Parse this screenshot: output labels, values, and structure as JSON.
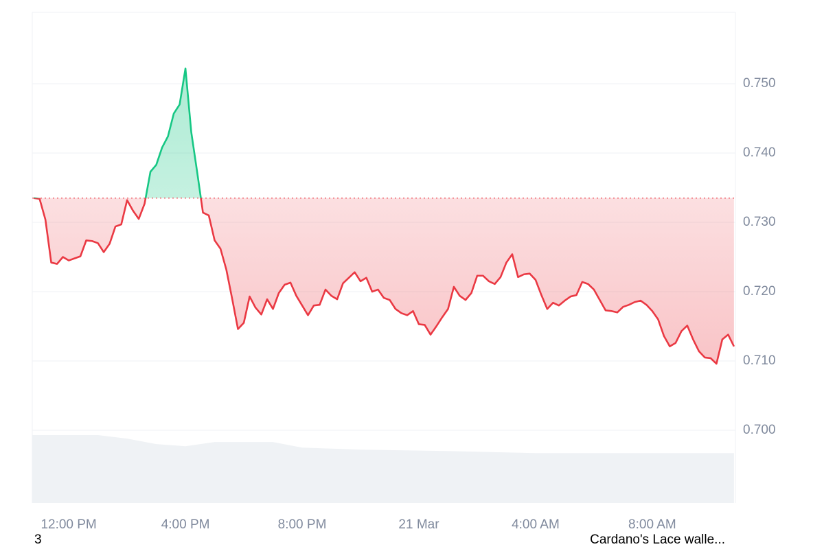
{
  "chart_data": {
    "type": "line",
    "x": [
      -1.2,
      -1.0,
      -0.8,
      -0.6,
      -0.4,
      -0.2,
      0.0,
      0.2,
      0.4,
      0.6,
      0.8,
      1.0,
      1.2,
      1.4,
      1.6,
      1.8,
      2.0,
      2.2,
      2.4,
      2.6,
      2.8,
      3.0,
      3.2,
      3.4,
      3.6,
      3.8,
      4.0,
      4.2,
      4.4,
      4.6,
      4.8,
      5.0,
      5.2,
      5.4,
      5.6,
      5.8,
      6.0,
      6.2,
      6.4,
      6.6,
      6.8,
      7.0,
      7.2,
      7.4,
      7.6,
      7.8,
      8.0,
      8.2,
      8.4,
      8.6,
      8.8,
      9.0,
      9.2,
      9.4,
      9.6,
      9.8,
      10.0,
      10.2,
      10.4,
      10.6,
      10.8,
      11.0,
      11.2,
      11.4,
      11.6,
      11.8,
      12.0,
      12.2,
      12.4,
      12.6,
      12.8,
      13.0,
      13.2,
      13.4,
      13.6,
      13.8,
      14.0,
      14.2,
      14.4,
      14.6,
      14.8,
      15.0,
      15.2,
      15.4,
      15.6,
      15.8,
      16.0,
      16.2,
      16.4,
      16.6,
      16.8,
      17.0,
      17.2,
      17.4,
      17.6,
      17.8,
      18.0,
      18.2,
      18.4,
      18.6,
      18.8,
      19.0,
      19.2,
      19.4,
      19.6,
      19.8,
      20.0,
      20.2,
      20.4,
      20.6,
      20.8,
      21.0,
      21.2,
      21.4,
      21.6,
      21.8,
      22.0,
      22.2,
      22.4,
      22.6,
      22.8
    ],
    "series": [
      {
        "color": "#ea3943",
        "color_up": "#16c784",
        "values": [
          0.7335,
          0.7334,
          0.7304,
          0.7242,
          0.724,
          0.725,
          0.7245,
          0.7248,
          0.7251,
          0.7274,
          0.7273,
          0.727,
          0.7257,
          0.7269,
          0.7294,
          0.7297,
          0.7332,
          0.7317,
          0.7305,
          0.7327,
          0.7373,
          0.7383,
          0.7408,
          0.7424,
          0.7457,
          0.747,
          0.7522,
          0.743,
          0.7373,
          0.7314,
          0.731,
          0.7274,
          0.7262,
          0.7232,
          0.719,
          0.7146,
          0.7155,
          0.7193,
          0.7177,
          0.7167,
          0.7189,
          0.7175,
          0.7198,
          0.721,
          0.7213,
          0.7194,
          0.718,
          0.7166,
          0.718,
          0.7181,
          0.7203,
          0.7194,
          0.7189,
          0.7212,
          0.722,
          0.7228,
          0.7215,
          0.722,
          0.72,
          0.7203,
          0.7191,
          0.7188,
          0.7175,
          0.7169,
          0.7166,
          0.7172,
          0.7153,
          0.7152,
          0.7138,
          0.715,
          0.7163,
          0.7175,
          0.7207,
          0.7194,
          0.7188,
          0.7198,
          0.7223,
          0.7223,
          0.7215,
          0.7211,
          0.7221,
          0.7242,
          0.7254,
          0.7221,
          0.7225,
          0.7226,
          0.7217,
          0.7195,
          0.7175,
          0.7184,
          0.718,
          0.7187,
          0.7193,
          0.7195,
          0.7214,
          0.7211,
          0.7203,
          0.7188,
          0.7173,
          0.7172,
          0.717,
          0.7178,
          0.7181,
          0.7185,
          0.7187,
          0.7181,
          0.7172,
          0.716,
          0.7136,
          0.7121,
          0.7126,
          0.7143,
          0.7151,
          0.7131,
          0.7114,
          0.7105,
          0.7104,
          0.7096,
          0.7131,
          0.7138,
          0.7121
        ]
      }
    ],
    "baseline": 0.7335,
    "volume": {
      "color": "#eff2f5",
      "x": [
        -1.25,
        1,
        2,
        3,
        4,
        5,
        7,
        8,
        10,
        13,
        16,
        22.8
      ],
      "values": [
        0.6993,
        0.6993,
        0.6988,
        0.698,
        0.6977,
        0.6983,
        0.6983,
        0.6975,
        0.6972,
        0.697,
        0.6967,
        0.6967
      ]
    },
    "xlim": [
      -1.25,
      22.85
    ],
    "xticks": [
      {
        "value": 0,
        "label": "12:00 PM"
      },
      {
        "value": 4,
        "label": "4:00 PM"
      },
      {
        "value": 8,
        "label": "8:00 PM"
      },
      {
        "value": 12,
        "label": "21 Mar"
      },
      {
        "value": 16,
        "label": "4:00 AM"
      },
      {
        "value": 20,
        "label": "8:00 AM"
      }
    ],
    "ylim": [
      0.6895,
      0.7603
    ],
    "yticks": [
      {
        "value": 0.7,
        "label": "0.700"
      },
      {
        "value": 0.71,
        "label": "0.710"
      },
      {
        "value": 0.72,
        "label": "0.720"
      },
      {
        "value": 0.73,
        "label": "0.730"
      },
      {
        "value": 0.74,
        "label": "0.740"
      },
      {
        "value": 0.75,
        "label": "0.750"
      }
    ],
    "grid": true,
    "footer_left": "3",
    "footer_right": "Cardano's Lace walle..."
  }
}
